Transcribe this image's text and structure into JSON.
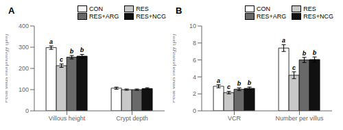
{
  "chart_data": [
    {
      "type": "bar",
      "title": "A",
      "ylabel": "Fetal villus morphology (μm)",
      "categories": [
        "Villous height",
        "Crypt depth"
      ],
      "series": [
        {
          "name": "CON",
          "color": "#ffffff",
          "values": [
            298,
            107
          ],
          "errors": [
            8,
            5
          ],
          "letters": [
            "a",
            null
          ]
        },
        {
          "name": "RES",
          "color": "#c8c8c8",
          "values": [
            213,
            100
          ],
          "errors": [
            8,
            3
          ],
          "letters": [
            "c",
            null
          ]
        },
        {
          "name": "RES+ARG",
          "color": "#696969",
          "values": [
            253,
            100
          ],
          "errors": [
            8,
            3
          ],
          "letters": [
            "b",
            null
          ]
        },
        {
          "name": "RES+NCG",
          "color": "#111111",
          "values": [
            258,
            105
          ],
          "errors": [
            8,
            4
          ],
          "letters": [
            "b",
            null
          ]
        }
      ],
      "ylim": [
        0,
        400
      ],
      "yticks": [
        0,
        100,
        200,
        300,
        400
      ],
      "grid": false,
      "legend": "upper right"
    },
    {
      "type": "bar",
      "title": "B",
      "ylabel": "Fetal villus morphology (μm)",
      "categories": [
        "VCR",
        "Number per villus"
      ],
      "series": [
        {
          "name": "CON",
          "color": "#ffffff",
          "values": [
            2.9,
            7.4
          ],
          "errors": [
            0.18,
            0.4
          ],
          "letters": [
            "a",
            "a"
          ]
        },
        {
          "name": "RES",
          "color": "#c8c8c8",
          "values": [
            2.15,
            4.2
          ],
          "errors": [
            0.15,
            0.4
          ],
          "letters": [
            "c",
            "c"
          ]
        },
        {
          "name": "RES+ARG",
          "color": "#696969",
          "values": [
            2.55,
            6.0
          ],
          "errors": [
            0.15,
            0.3
          ],
          "letters": [
            "b",
            "b"
          ]
        },
        {
          "name": "RES+NCG",
          "color": "#111111",
          "values": [
            2.65,
            6.05
          ],
          "errors": [
            0.15,
            0.3
          ],
          "letters": [
            "b",
            "b"
          ]
        }
      ],
      "ylim": [
        0,
        10
      ],
      "yticks": [
        0,
        2,
        4,
        6,
        8,
        10
      ],
      "grid": false,
      "legend": "upper right"
    }
  ]
}
